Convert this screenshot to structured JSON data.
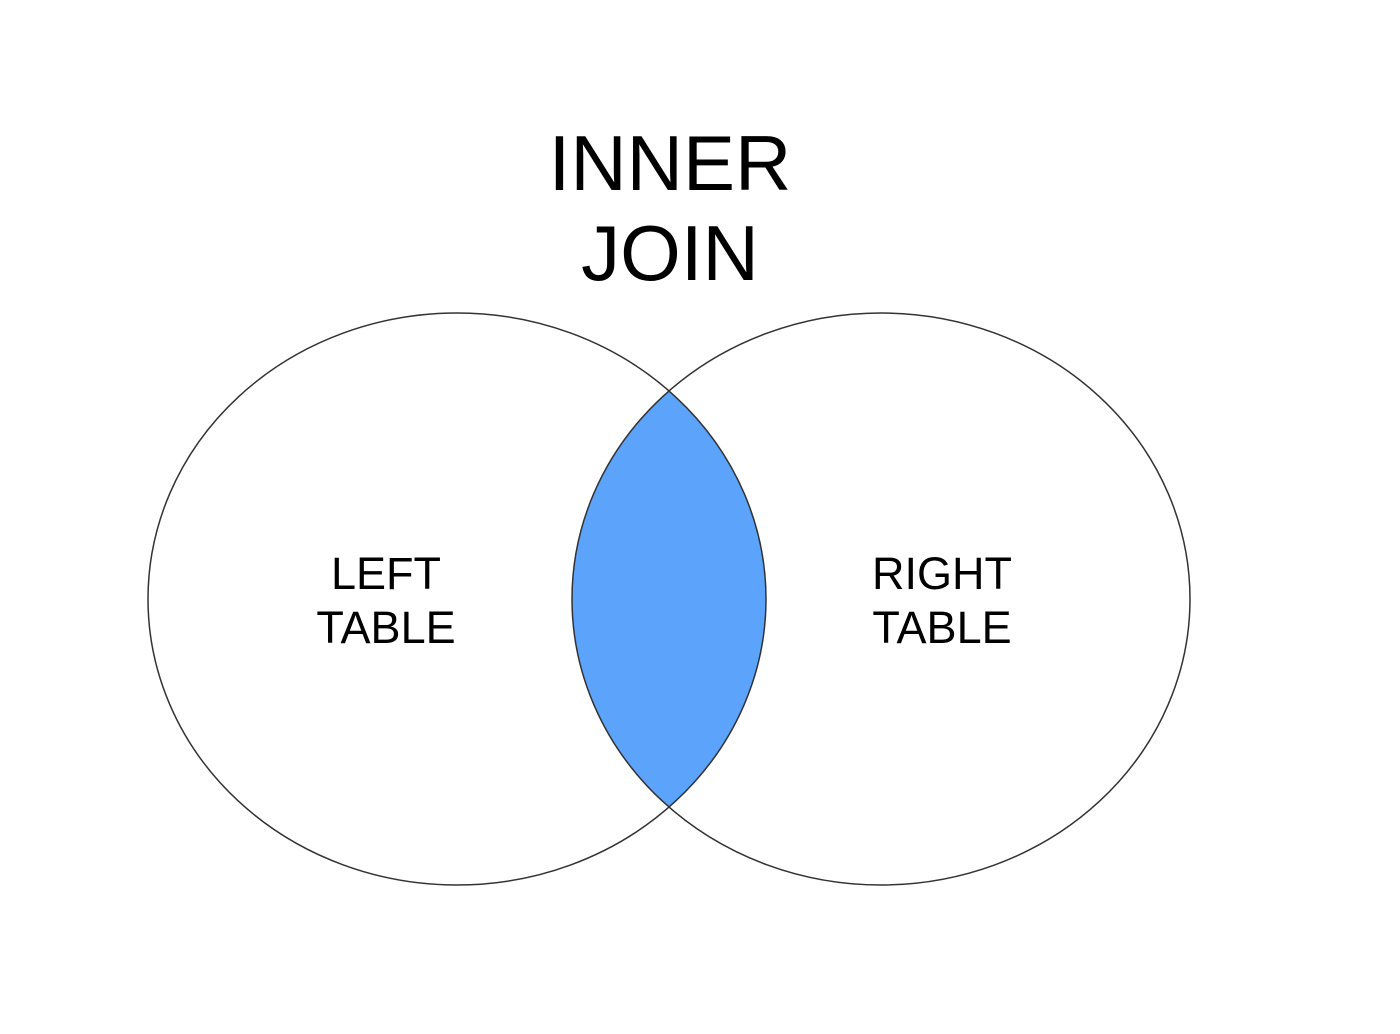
{
  "title": {
    "line1": "INNER",
    "line2": "JOIN"
  },
  "left_set": {
    "line1": "LEFT",
    "line2": "TABLE"
  },
  "right_set": {
    "line1": "RIGHT",
    "line2": "TABLE"
  },
  "colors": {
    "intersection_fill": "#5BA3FB",
    "outline": "#333333",
    "background": "#ffffff"
  },
  "highlighted_region": "intersection"
}
